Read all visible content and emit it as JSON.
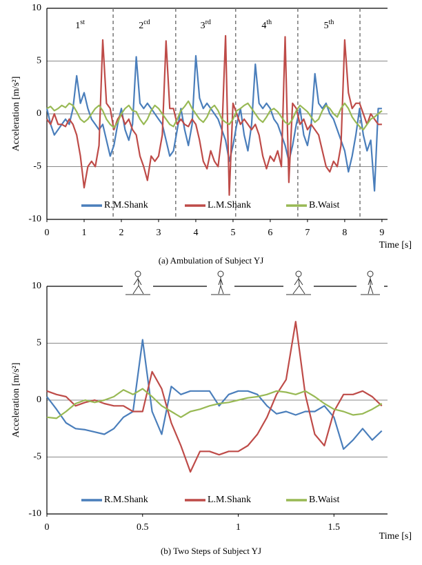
{
  "chart_data": [
    {
      "type": "line",
      "y_label": "Acceleration [m/s²]",
      "x_label": "Time [s]",
      "caption": "(a) Ambulation of Subject YJ",
      "xlim": [
        0,
        9.15
      ],
      "ylim": [
        -10,
        10
      ],
      "xticks": [
        0,
        1,
        2,
        3,
        4,
        5,
        6,
        7,
        8,
        9
      ],
      "yticks": [
        -10,
        -5,
        0,
        5,
        10
      ],
      "grid": true,
      "step_boundaries": [
        1.78,
        3.46,
        5.07,
        6.74,
        8.41
      ],
      "step_labels": [
        {
          "number": "1",
          "suffix": "st"
        },
        {
          "number": "2",
          "suffix": "cd"
        },
        {
          "number": "3",
          "suffix": "rd"
        },
        {
          "number": "4",
          "suffix": "th"
        },
        {
          "number": "5",
          "suffix": "th"
        }
      ],
      "x": [
        0,
        0.1,
        0.2,
        0.3,
        0.4,
        0.5,
        0.6,
        0.7,
        0.8,
        0.9,
        1,
        1.1,
        1.2,
        1.3,
        1.4,
        1.5,
        1.6,
        1.7,
        1.8,
        1.9,
        2,
        2.1,
        2.2,
        2.3,
        2.4,
        2.5,
        2.6,
        2.7,
        2.8,
        2.9,
        3,
        3.1,
        3.2,
        3.3,
        3.4,
        3.5,
        3.6,
        3.7,
        3.8,
        3.9,
        4,
        4.1,
        4.2,
        4.3,
        4.4,
        4.5,
        4.6,
        4.7,
        4.8,
        4.9,
        5,
        5.1,
        5.2,
        5.3,
        5.4,
        5.5,
        5.6,
        5.7,
        5.8,
        5.9,
        6,
        6.1,
        6.2,
        6.3,
        6.4,
        6.5,
        6.6,
        6.7,
        6.8,
        6.9,
        7,
        7.1,
        7.2,
        7.3,
        7.4,
        7.5,
        7.6,
        7.7,
        7.8,
        7.9,
        8,
        8.1,
        8.2,
        8.3,
        8.4,
        8.5,
        8.6,
        8.7,
        8.8,
        8.9,
        9
      ],
      "series": [
        {
          "name": "R.M.Shank",
          "color": "#4a7ebb",
          "values": [
            0.5,
            -1,
            -2,
            -1.5,
            -1,
            -0.5,
            -1,
            0.5,
            3.6,
            1,
            2,
            0.5,
            -0.5,
            -1,
            -1.5,
            -1,
            -2.5,
            -4,
            -3,
            -1,
            0.5,
            -1.5,
            -2.5,
            -1,
            5.4,
            1,
            0.5,
            1,
            0.5,
            0,
            -0.5,
            -1,
            -2.5,
            -4,
            -3.5,
            -1.5,
            0.5,
            -1.5,
            -3,
            -1,
            5.5,
            1.5,
            0.5,
            1,
            0.5,
            0,
            -0.5,
            -1.5,
            -2.5,
            -4.5,
            -3,
            -1,
            0.5,
            -2,
            -3.5,
            -1,
            4.7,
            1,
            0.5,
            1,
            0.5,
            -0.5,
            -1,
            -2,
            -3,
            -4.5,
            -3,
            -1,
            0.5,
            -2,
            -3,
            -1,
            3.8,
            1,
            0.5,
            1,
            0,
            -0.5,
            -1.5,
            -2.5,
            -3.5,
            -5.5,
            -4,
            -2,
            0.5,
            -2,
            -3.5,
            -2.5,
            -7.3,
            0.5,
            0.5
          ]
        },
        {
          "name": "L.M.Shank",
          "color": "#be4b48",
          "values": [
            -0.5,
            -1,
            0,
            -1,
            -1,
            -1.2,
            -0.5,
            -1,
            -2,
            -4,
            -7,
            -5,
            -4.5,
            -5,
            -3,
            7,
            1,
            0.5,
            -1.5,
            -0.5,
            0,
            -1,
            -0.5,
            -1.5,
            -2,
            -4,
            -5,
            -6.3,
            -4,
            -4.5,
            -4,
            -2,
            6.9,
            0.5,
            0.5,
            -1,
            -0.5,
            -1,
            -1.2,
            -0.5,
            -1,
            -2.5,
            -4.5,
            -5.2,
            -3.5,
            -4.5,
            -5,
            -2,
            7.4,
            -7.7,
            1,
            0,
            -1,
            -0.5,
            -1,
            -1.5,
            -1,
            -2,
            -4,
            -5.2,
            -4,
            -4.5,
            -3.5,
            -5,
            7.3,
            -6.5,
            1,
            0.5,
            -1,
            -0.5,
            -1.5,
            -1,
            -1.5,
            -2,
            -3.5,
            -5,
            -5.5,
            -4.5,
            -5,
            -3,
            7,
            2,
            0.5,
            1,
            1,
            0,
            -1,
            0,
            -0.5,
            -1,
            -1
          ]
        },
        {
          "name": "B.Waist",
          "color": "#98b954",
          "values": [
            0.5,
            0.7,
            0.3,
            0.5,
            0.8,
            0.6,
            1,
            0.8,
            0.2,
            -0.5,
            -0.8,
            -0.5,
            0,
            0.5,
            0.8,
            0.3,
            -0.5,
            -1,
            -1.3,
            -0.8,
            0,
            0.5,
            0.8,
            0.3,
            0.2,
            -0.5,
            -1,
            -0.5,
            0.3,
            0.8,
            0.5,
            0,
            -0.5,
            -1,
            -1.2,
            -0.5,
            0.3,
            0.7,
            1.2,
            0.5,
            0,
            -0.5,
            -0.8,
            -0.3,
            0.5,
            0.8,
            0.3,
            -0.5,
            -0.8,
            -1,
            -0.5,
            0.3,
            0.5,
            0.8,
            1,
            0.5,
            0,
            -0.5,
            -0.8,
            -0.3,
            0.3,
            0.5,
            0.2,
            -0.3,
            -0.8,
            -1,
            -0.5,
            0.3,
            0.8,
            0.5,
            0.2,
            -0.3,
            -0.8,
            -0.5,
            0.3,
            0.8,
            0.5,
            0,
            -0.3,
            0.5,
            1,
            0.5,
            -0.3,
            -0.8,
            -1.2,
            -1.5,
            -1,
            -0.5,
            -0.3,
            0,
            0.3
          ]
        }
      ]
    },
    {
      "type": "line",
      "y_label": "Acceleration [m/s²]",
      "x_label": "Time [s]",
      "caption": "(b) Two Steps of Subject YJ",
      "xlim": [
        0,
        1.78
      ],
      "ylim": [
        -10,
        10
      ],
      "xticks": [
        0,
        0.5,
        1,
        1.5
      ],
      "yticks": [
        -10,
        -5,
        0,
        5,
        10
      ],
      "grid": true,
      "x": [
        0,
        0.05,
        0.1,
        0.15,
        0.2,
        0.25,
        0.3,
        0.35,
        0.4,
        0.45,
        0.5,
        0.55,
        0.6,
        0.65,
        0.7,
        0.75,
        0.8,
        0.85,
        0.9,
        0.95,
        1,
        1.05,
        1.1,
        1.15,
        1.2,
        1.25,
        1.3,
        1.35,
        1.4,
        1.45,
        1.5,
        1.55,
        1.6,
        1.65,
        1.7,
        1.75
      ],
      "series": [
        {
          "name": "R.M.Shank",
          "color": "#4a7ebb",
          "values": [
            0.3,
            -0.8,
            -2,
            -2.5,
            -2.6,
            -2.8,
            -3,
            -2.5,
            -1.5,
            -1,
            5.3,
            -1,
            -3,
            1.2,
            0.5,
            0.8,
            0.8,
            0.8,
            -0.5,
            0.5,
            0.8,
            0.8,
            0.5,
            -0.5,
            -1.2,
            -1,
            -1.3,
            -1,
            -1,
            -0.5,
            -1.5,
            -4.3,
            -3.5,
            -2.5,
            -3.5,
            -2.7
          ]
        },
        {
          "name": "L.M.Shank",
          "color": "#be4b48",
          "values": [
            0.8,
            0.5,
            0.3,
            -0.5,
            -0.2,
            0,
            -0.3,
            -0.5,
            -0.5,
            -1,
            -1,
            2.5,
            1,
            -2,
            -4,
            -6.3,
            -4.5,
            -4.5,
            -4.8,
            -4.5,
            -4.5,
            -4,
            -3,
            -1.5,
            0.5,
            1.8,
            6.9,
            0.5,
            -3,
            -4,
            -1,
            0.5,
            0.5,
            0.8,
            0.3,
            -0.5
          ]
        },
        {
          "name": "B.Waist",
          "color": "#98b954",
          "values": [
            -1.5,
            -1.6,
            -1,
            -0.3,
            0,
            -0.2,
            0,
            0.3,
            0.9,
            0.5,
            1,
            0.3,
            -0.5,
            -1,
            -1.5,
            -1,
            -0.8,
            -0.5,
            -0.3,
            -0.2,
            0,
            0.2,
            0.3,
            0.5,
            0.8,
            0.7,
            0.5,
            0.8,
            0.3,
            -0.3,
            -0.8,
            -1,
            -1.3,
            -1.2,
            -0.8,
            -0.3
          ]
        }
      ]
    }
  ]
}
